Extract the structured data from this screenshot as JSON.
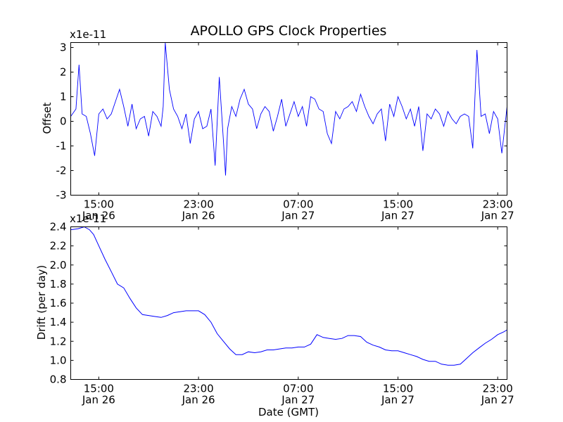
{
  "figure": {
    "title": "APOLLO GPS Clock Properties",
    "xlabel": "Date (GMT)",
    "x_ticks": [
      {
        "time": "15:00",
        "date": "Jan 26"
      },
      {
        "time": "23:00",
        "date": "Jan 26"
      },
      {
        "time": "07:00",
        "date": "Jan 27"
      },
      {
        "time": "15:00",
        "date": "Jan 27"
      },
      {
        "time": "23:00",
        "date": "Jan 27"
      }
    ]
  },
  "chart_data": [
    {
      "type": "line",
      "ylabel": "Offset",
      "scale_label": "x1e-11",
      "xlim": [
        "Jan 26 12:45",
        "Jan 27 23:45"
      ],
      "ylim": [
        -3,
        3.2
      ],
      "y_ticks": [
        "3",
        "2",
        "1",
        "0",
        "-1",
        "-2",
        "-3"
      ],
      "y_tick_values": [
        3,
        2,
        1,
        0,
        -1,
        -2,
        -3
      ],
      "color": "#0000ff",
      "grid": false,
      "series": [
        {
          "x": [
            "Jan 26 12:45",
            "Jan 26 13:10",
            "Jan 26 13:25",
            "Jan 26 13:40",
            "Jan 26 14:00",
            "Jan 26 14:20",
            "Jan 26 14:40",
            "Jan 26 15:00",
            "Jan 26 15:20",
            "Jan 26 15:40",
            "Jan 26 16:00",
            "Jan 26 16:20",
            "Jan 26 16:40",
            "Jan 26 17:00",
            "Jan 26 17:20",
            "Jan 26 17:40",
            "Jan 26 18:00",
            "Jan 26 18:20",
            "Jan 26 18:40",
            "Jan 26 19:00",
            "Jan 26 19:20",
            "Jan 26 19:40",
            "Jan 26 20:00",
            "Jan 26 20:10",
            "Jan 26 20:20",
            "Jan 26 20:40",
            "Jan 26 21:00",
            "Jan 26 21:20",
            "Jan 26 21:40",
            "Jan 26 22:00",
            "Jan 26 22:20",
            "Jan 26 22:40",
            "Jan 26 23:00",
            "Jan 26 23:20",
            "Jan 26 23:40",
            "Jan 27 00:00",
            "Jan 27 00:20",
            "Jan 27 00:40",
            "Jan 27 01:00",
            "Jan 27 01:10",
            "Jan 27 01:20",
            "Jan 27 01:40",
            "Jan 27 02:00",
            "Jan 27 02:20",
            "Jan 27 02:40",
            "Jan 27 03:00",
            "Jan 27 03:20",
            "Jan 27 03:40",
            "Jan 27 04:00",
            "Jan 27 04:20",
            "Jan 27 04:40",
            "Jan 27 05:00",
            "Jan 27 05:20",
            "Jan 27 05:40",
            "Jan 27 06:00",
            "Jan 27 06:20",
            "Jan 27 06:40",
            "Jan 27 07:00",
            "Jan 27 07:20",
            "Jan 27 07:40",
            "Jan 27 08:00",
            "Jan 27 08:20",
            "Jan 27 08:40",
            "Jan 27 09:00",
            "Jan 27 09:20",
            "Jan 27 09:40",
            "Jan 27 10:00",
            "Jan 27 10:20",
            "Jan 27 10:40",
            "Jan 27 11:00",
            "Jan 27 11:20",
            "Jan 27 11:40",
            "Jan 27 12:00",
            "Jan 27 12:20",
            "Jan 27 12:40",
            "Jan 27 13:00",
            "Jan 27 13:20",
            "Jan 27 13:40",
            "Jan 27 14:00",
            "Jan 27 14:20",
            "Jan 27 14:40",
            "Jan 27 15:00",
            "Jan 27 15:20",
            "Jan 27 15:40",
            "Jan 27 16:00",
            "Jan 27 16:20",
            "Jan 27 16:40",
            "Jan 27 17:00",
            "Jan 27 17:20",
            "Jan 27 17:40",
            "Jan 27 18:00",
            "Jan 27 18:20",
            "Jan 27 18:40",
            "Jan 27 19:00",
            "Jan 27 19:20",
            "Jan 27 19:40",
            "Jan 27 20:00",
            "Jan 27 20:20",
            "Jan 27 20:40",
            "Jan 27 21:00",
            "Jan 27 21:20",
            "Jan 27 21:40",
            "Jan 27 22:00",
            "Jan 27 22:20",
            "Jan 27 22:40",
            "Jan 27 23:00",
            "Jan 27 23:20",
            "Jan 27 23:45"
          ],
          "y": [
            0.2,
            0.5,
            2.3,
            0.3,
            0.2,
            -0.5,
            -1.4,
            0.3,
            0.5,
            0.1,
            0.3,
            0.8,
            1.3,
            0.6,
            -0.2,
            0.7,
            -0.3,
            0.1,
            0.2,
            -0.6,
            0.4,
            0.2,
            -0.2,
            0.6,
            3.2,
            1.3,
            0.5,
            0.2,
            -0.3,
            0.3,
            -0.9,
            0.1,
            0.4,
            -0.3,
            -0.2,
            0.5,
            -1.8,
            1.8,
            -0.8,
            -2.2,
            -0.3,
            0.6,
            0.2,
            0.9,
            1.3,
            0.7,
            0.5,
            -0.3,
            0.3,
            0.6,
            0.4,
            -0.4,
            0.2,
            0.9,
            -0.2,
            0.3,
            0.8,
            0.2,
            0.6,
            -0.2,
            1.0,
            0.9,
            0.5,
            0.4,
            -0.5,
            -0.9,
            0.4,
            0.1,
            0.5,
            0.6,
            0.8,
            0.4,
            1.1,
            0.6,
            0.2,
            -0.1,
            0.3,
            0.5,
            -0.8,
            0.7,
            0.2,
            1.0,
            0.6,
            0.1,
            0.5,
            -0.2,
            0.6,
            -1.2,
            0.3,
            0.1,
            0.5,
            0.3,
            -0.2,
            0.4,
            0.1,
            -0.1,
            0.2,
            0.3,
            0.2,
            -1.1,
            2.9,
            0.2,
            0.3,
            -0.5,
            0.4,
            0.1,
            -1.3,
            0.6
          ]
        }
      ]
    },
    {
      "type": "line",
      "ylabel": "Drift (per day)",
      "scale_label": "x1e-11",
      "xlim": [
        "Jan 26 12:45",
        "Jan 27 23:45"
      ],
      "ylim": [
        0.8,
        2.4
      ],
      "y_ticks": [
        "2.4",
        "2.2",
        "2.0",
        "1.8",
        "1.6",
        "1.4",
        "1.2",
        "1.0",
        "0.8"
      ],
      "y_tick_values": [
        2.4,
        2.2,
        2.0,
        1.8,
        1.6,
        1.4,
        1.2,
        1.0,
        0.8
      ],
      "color": "#0000ff",
      "grid": false,
      "series": [
        {
          "x": [
            "Jan 26 12:45",
            "Jan 26 13:20",
            "Jan 26 13:50",
            "Jan 26 14:15",
            "Jan 26 14:35",
            "Jan 26 15:00",
            "Jan 26 15:30",
            "Jan 26 16:00",
            "Jan 26 16:30",
            "Jan 26 17:00",
            "Jan 26 17:30",
            "Jan 26 18:00",
            "Jan 26 18:30",
            "Jan 26 19:00",
            "Jan 26 19:30",
            "Jan 26 20:00",
            "Jan 26 20:30",
            "Jan 26 21:00",
            "Jan 26 21:30",
            "Jan 26 22:00",
            "Jan 26 22:30",
            "Jan 26 23:00",
            "Jan 26 23:30",
            "Jan 27 00:00",
            "Jan 27 00:30",
            "Jan 27 01:00",
            "Jan 27 01:30",
            "Jan 27 02:00",
            "Jan 27 02:30",
            "Jan 27 03:00",
            "Jan 27 03:30",
            "Jan 27 04:00",
            "Jan 27 04:30",
            "Jan 27 05:00",
            "Jan 27 05:30",
            "Jan 27 06:00",
            "Jan 27 06:30",
            "Jan 27 07:00",
            "Jan 27 07:30",
            "Jan 27 08:00",
            "Jan 27 08:30",
            "Jan 27 09:00",
            "Jan 27 09:30",
            "Jan 27 10:00",
            "Jan 27 10:30",
            "Jan 27 11:00",
            "Jan 27 11:30",
            "Jan 27 12:00",
            "Jan 27 12:30",
            "Jan 27 13:00",
            "Jan 27 13:30",
            "Jan 27 14:00",
            "Jan 27 14:30",
            "Jan 27 15:00",
            "Jan 27 15:30",
            "Jan 27 16:00",
            "Jan 27 16:30",
            "Jan 27 17:00",
            "Jan 27 17:30",
            "Jan 27 18:00",
            "Jan 27 18:30",
            "Jan 27 19:00",
            "Jan 27 19:30",
            "Jan 27 20:00",
            "Jan 27 20:30",
            "Jan 27 21:00",
            "Jan 27 21:30",
            "Jan 27 22:00",
            "Jan 27 22:30",
            "Jan 27 23:00",
            "Jan 27 23:30",
            "Jan 27 23:45"
          ],
          "y": [
            2.37,
            2.38,
            2.4,
            2.37,
            2.32,
            2.2,
            2.06,
            1.93,
            1.8,
            1.76,
            1.65,
            1.55,
            1.48,
            1.47,
            1.46,
            1.45,
            1.47,
            1.5,
            1.51,
            1.52,
            1.52,
            1.52,
            1.48,
            1.4,
            1.28,
            1.2,
            1.12,
            1.06,
            1.06,
            1.09,
            1.08,
            1.09,
            1.11,
            1.11,
            1.12,
            1.13,
            1.13,
            1.14,
            1.14,
            1.17,
            1.27,
            1.24,
            1.23,
            1.22,
            1.23,
            1.26,
            1.26,
            1.25,
            1.19,
            1.16,
            1.14,
            1.11,
            1.1,
            1.1,
            1.08,
            1.06,
            1.04,
            1.01,
            0.99,
            0.99,
            0.96,
            0.95,
            0.95,
            0.96,
            1.02,
            1.08,
            1.13,
            1.18,
            1.22,
            1.27,
            1.3,
            1.32
          ]
        }
      ]
    }
  ]
}
